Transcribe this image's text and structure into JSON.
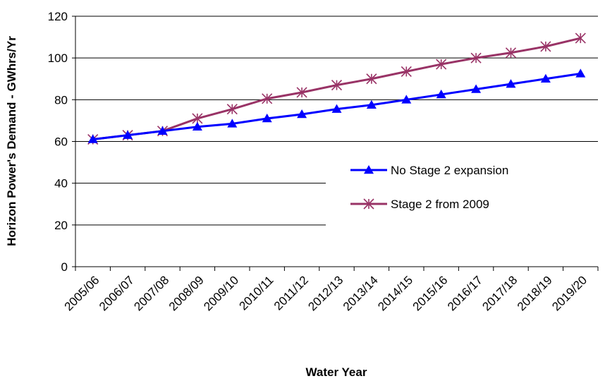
{
  "chart_data": {
    "type": "line",
    "title": "",
    "xlabel": "Water Year",
    "ylabel": "Horizon Power's Demand - GWhrs/Yr",
    "categories": [
      "2005/06",
      "2006/07",
      "2007/08",
      "2008/09",
      "2009/10",
      "2010/11",
      "2011/12",
      "2012/13",
      "2013/14",
      "2014/15",
      "2015/16",
      "2016/17",
      "2017/18",
      "2018/19",
      "2019/20"
    ],
    "ylim": [
      0,
      120
    ],
    "yticks": [
      0,
      20,
      40,
      60,
      80,
      100,
      120
    ],
    "grid": "horizontal",
    "legend_position": "right-middle",
    "series": [
      {
        "name": "No Stage 2 expansion",
        "color": "#0000ff",
        "marker": "triangle",
        "values": [
          61,
          63,
          65,
          67,
          68.5,
          71,
          73,
          75.5,
          77.5,
          80,
          82.5,
          85,
          87.5,
          90,
          92.5
        ]
      },
      {
        "name": "Stage 2 from 2009",
        "color": "#993366",
        "marker": "asterisk",
        "values": [
          61,
          63,
          65,
          71,
          75.5,
          80.5,
          83.5,
          87,
          90,
          93.5,
          97,
          100,
          102.5,
          105.5,
          109.5
        ]
      }
    ]
  }
}
